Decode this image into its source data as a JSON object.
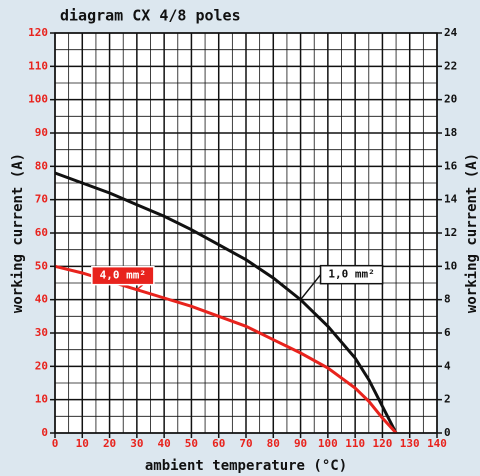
{
  "chart_data": {
    "type": "line",
    "title": "diagram CX 4/8 poles",
    "xlabel": "ambient temperature (°C)",
    "ylabel": "working current (A)",
    "y2label": "working current (A)",
    "x": [
      0,
      10,
      20,
      30,
      40,
      50,
      60,
      70,
      80,
      90,
      100,
      110,
      115,
      120,
      125
    ],
    "series": [
      {
        "name": "1,0 mm²",
        "color": "#111111",
        "axis": "y2",
        "values": [
          15.6,
          15,
          14.4,
          13.7,
          13,
          12.2,
          11.3,
          10.4,
          9.3,
          8,
          6.4,
          4.5,
          3.2,
          1.6,
          0
        ]
      },
      {
        "name": "4,0 mm²",
        "color": "#e8231d",
        "axis": "y",
        "values": [
          50,
          48,
          45.5,
          43,
          40.5,
          38,
          35,
          32,
          28,
          24,
          19.5,
          13.5,
          9.5,
          4.5,
          0
        ]
      }
    ],
    "xlim": [
      0,
      140
    ],
    "xticks": [
      0,
      10,
      20,
      30,
      40,
      50,
      60,
      70,
      80,
      90,
      100,
      110,
      120,
      130,
      140
    ],
    "ylim": [
      0,
      120
    ],
    "yticks": [
      0,
      10,
      20,
      30,
      40,
      50,
      60,
      70,
      80,
      90,
      100,
      110,
      120
    ],
    "y2lim": [
      0,
      24
    ],
    "y2ticks": [
      0,
      2,
      4,
      6,
      8,
      10,
      12,
      14,
      16,
      18,
      20,
      22,
      24
    ],
    "ytick_color": "#e8231d",
    "y2tick_color": "#111111",
    "xtick_color": "#e8231d",
    "grid": true
  }
}
